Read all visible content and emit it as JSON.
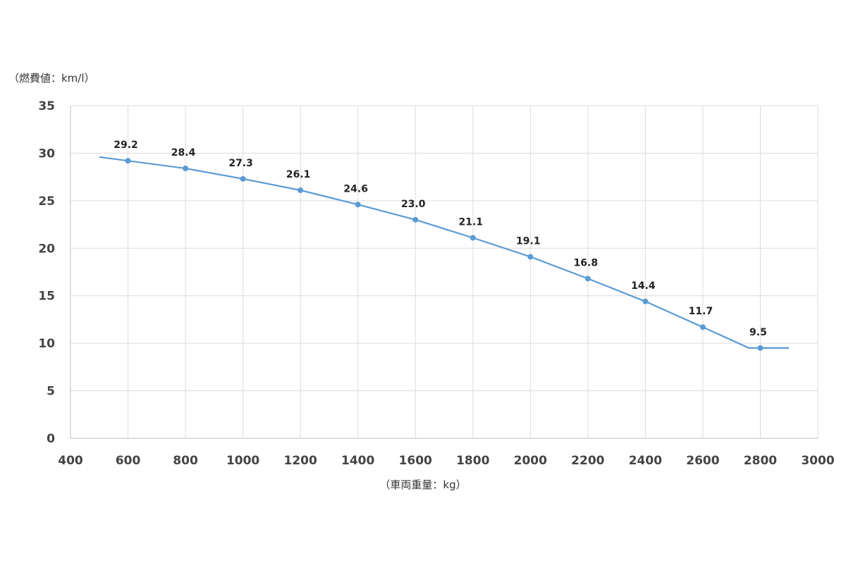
{
  "chart_data": {
    "type": "line",
    "title": "",
    "ylabel": "（燃費値：km/l）",
    "xlabel": "（車両重量：kg）",
    "xlim": [
      400,
      3000
    ],
    "ylim": [
      0,
      35
    ],
    "x_ticks": [
      400,
      600,
      800,
      1000,
      1200,
      1400,
      1600,
      1800,
      2000,
      2200,
      2400,
      2600,
      2800,
      3000
    ],
    "y_ticks": [
      0,
      5,
      10,
      15,
      20,
      25,
      30,
      35
    ],
    "grid": true,
    "legend": "none",
    "series": [
      {
        "color": "#5b9bd5",
        "line_start": {
          "x": 500,
          "y": 29.6
        },
        "line_end": {
          "x": 2900,
          "y": 9.5
        },
        "x": [
          600,
          800,
          1000,
          1200,
          1400,
          1600,
          1800,
          2000,
          2200,
          2400,
          2600,
          2800
        ],
        "values": [
          29.2,
          28.4,
          27.3,
          26.1,
          24.6,
          23.0,
          21.1,
          19.1,
          16.8,
          14.4,
          11.7,
          9.5
        ],
        "labels": [
          "29.2",
          "28.4",
          "27.3",
          "26.1",
          "24.6",
          "23.0",
          "21.1",
          "19.1",
          "16.8",
          "14.4",
          "11.7",
          "9.5"
        ]
      }
    ]
  }
}
